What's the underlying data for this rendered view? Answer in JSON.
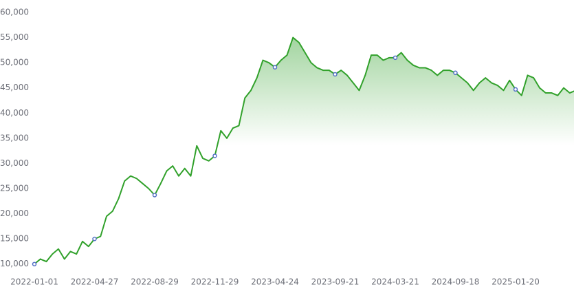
{
  "chart_data": {
    "type": "line",
    "categories": [
      "2022-01-01",
      null,
      null,
      null,
      null,
      null,
      null,
      null,
      null,
      null,
      "2022-04-27",
      null,
      null,
      null,
      null,
      null,
      null,
      null,
      null,
      null,
      "2022-08-29",
      null,
      null,
      null,
      null,
      null,
      null,
      null,
      null,
      null,
      "2022-11-29",
      null,
      null,
      null,
      null,
      null,
      null,
      null,
      null,
      null,
      "2023-04-24",
      null,
      null,
      null,
      null,
      null,
      null,
      null,
      null,
      null,
      "2023-09-21",
      null,
      null,
      null,
      null,
      null,
      null,
      null,
      null,
      null,
      "2024-03-21",
      null,
      null,
      null,
      null,
      null,
      null,
      null,
      null,
      null,
      "2024-09-18",
      null,
      null,
      null,
      null,
      null,
      null,
      null,
      null,
      null,
      "2025-01-20",
      null,
      null,
      null,
      null,
      null,
      null,
      null,
      null,
      null,
      null
    ],
    "values": [
      10000,
      11000,
      10500,
      12000,
      13000,
      11000,
      12500,
      12000,
      14500,
      13500,
      15000,
      15500,
      19500,
      20500,
      23000,
      26500,
      27500,
      27000,
      26000,
      25000,
      23700,
      26000,
      28500,
      29500,
      27500,
      29000,
      27500,
      33500,
      31000,
      30500,
      31500,
      36500,
      35000,
      37000,
      37500,
      43000,
      44500,
      47000,
      50500,
      50000,
      49100,
      50500,
      51500,
      55000,
      54000,
      52000,
      50000,
      49000,
      48500,
      48500,
      47700,
      48500,
      47500,
      46000,
      44500,
      47500,
      51500,
      51500,
      50500,
      51000,
      51000,
      52000,
      50500,
      49500,
      49000,
      49000,
      48500,
      47500,
      48500,
      48500,
      48000,
      47000,
      46000,
      44500,
      46000,
      47000,
      46000,
      45500,
      44500,
      46500,
      44700,
      43500,
      47500,
      47000,
      45000,
      44000,
      44000,
      43500,
      45000,
      44000,
      44500
    ],
    "color": "#31a12b",
    "marker_color": "#5470c6",
    "ylim": [
      7500,
      60000
    ],
    "yticks": [
      {
        "value": 10000,
        "label": "10,000"
      },
      {
        "value": 15000,
        "label": "15,000"
      },
      {
        "value": 20000,
        "label": "20,000"
      },
      {
        "value": 25000,
        "label": "25,000"
      },
      {
        "value": 30000,
        "label": "30,000"
      },
      {
        "value": 35000,
        "label": "35,000"
      },
      {
        "value": 40000,
        "label": "40,000"
      },
      {
        "value": 45000,
        "label": "45,000"
      },
      {
        "value": 50000,
        "label": "50,000"
      },
      {
        "value": 55000,
        "label": "55,000"
      },
      {
        "value": 60000,
        "label": "60,000"
      }
    ],
    "grid": false
  }
}
